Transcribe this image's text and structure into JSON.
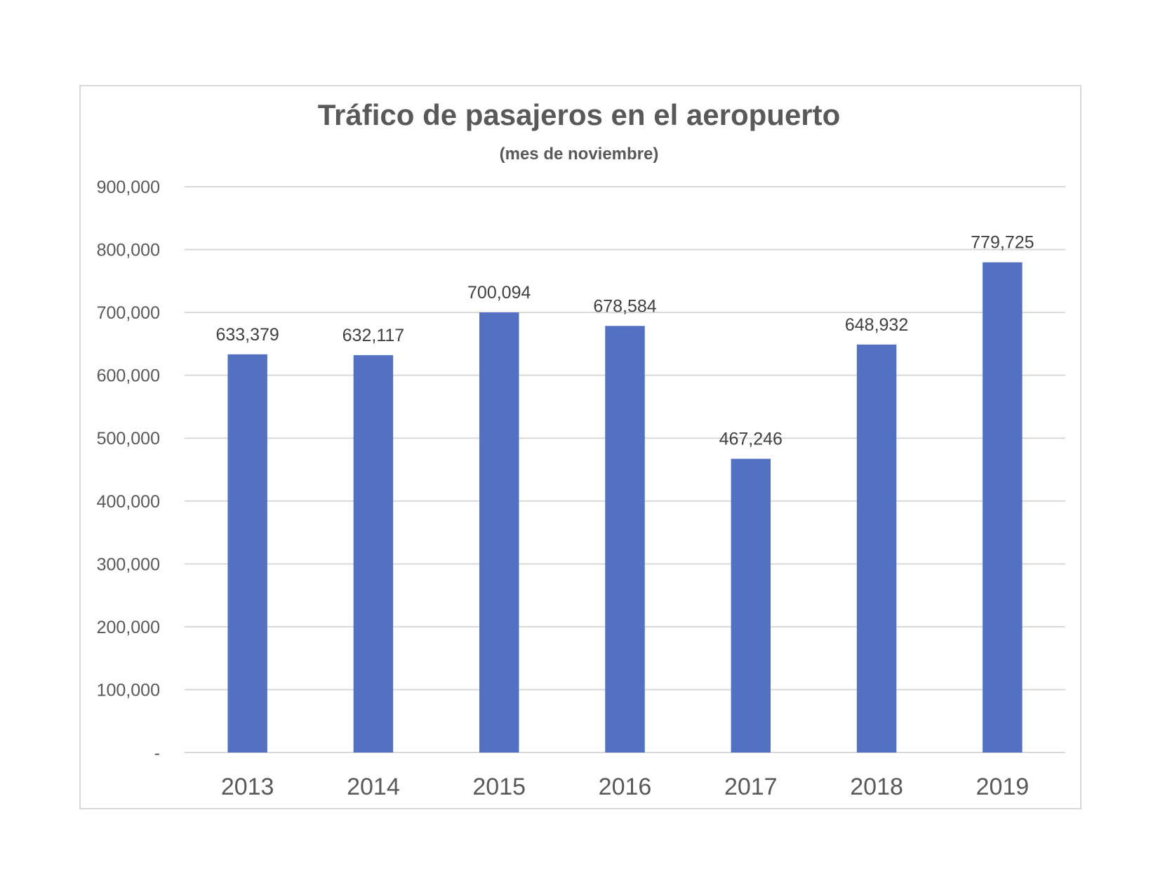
{
  "chart_data": {
    "type": "bar",
    "title": "Tráfico de pasajeros en el aeropuerto",
    "subtitle": "(mes de noviembre)",
    "xlabel": "",
    "ylabel": "",
    "categories": [
      "2013",
      "2014",
      "2015",
      "2016",
      "2017",
      "2018",
      "2019"
    ],
    "values": [
      633379,
      632117,
      700094,
      678584,
      467246,
      648932,
      779725
    ],
    "data_labels": [
      "633,379",
      "632,117",
      "700,094",
      "678,584",
      "467,246",
      "648,932",
      "779,725"
    ],
    "ylim": [
      0,
      900000
    ],
    "yticks": [
      0,
      100000,
      200000,
      300000,
      400000,
      500000,
      600000,
      700000,
      800000,
      900000
    ],
    "ytick_labels": [
      "-",
      "100,000",
      "200,000",
      "300,000",
      "400,000",
      "500,000",
      "600,000",
      "700,000",
      "800,000",
      "900,000"
    ],
    "grid": true,
    "legend": "none",
    "colors": {
      "bar": "#5470c0",
      "grid": "#d9d9d9",
      "text": "#595959",
      "frame": "#d9d9d9"
    }
  }
}
